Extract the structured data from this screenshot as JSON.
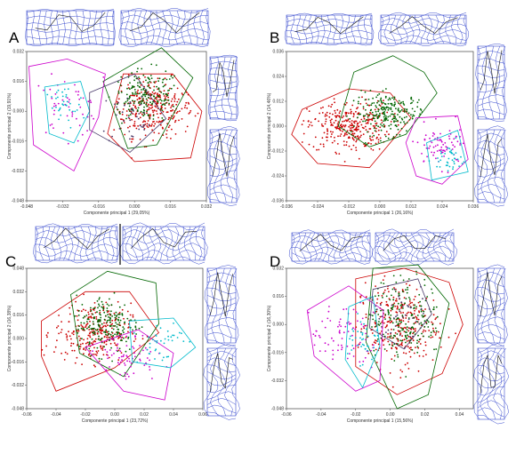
{
  "chart_data": [
    {
      "panel": "A",
      "type": "scatter",
      "xlabel": "Componente principal 1 (29,05%)",
      "ylabel": "Componente principal 2 (19,91%)",
      "xticks": [
        "-0.048",
        "-0.032",
        "-0.016",
        "0.000",
        "0.016",
        "0.032"
      ],
      "yticks": [
        "0.032",
        "0.016",
        "0.000",
        "-0.016",
        "-0.032",
        "-0.048"
      ],
      "xlim": [
        -0.048,
        0.032
      ],
      "ylim": [
        -0.048,
        0.032
      ],
      "series": [
        {
          "color": "#cc0000",
          "center": [
            0.008,
            0.002
          ],
          "spread": [
            0.009,
            0.008
          ],
          "n": 300,
          "hull": [
            [
              -0.005,
              0.02
            ],
            [
              0.017,
              0.02
            ],
            [
              0.03,
              0.0
            ],
            [
              0.025,
              -0.025
            ],
            [
              0.0,
              -0.027
            ],
            [
              -0.012,
              -0.012
            ]
          ]
        },
        {
          "color": "#006600",
          "center": [
            0.005,
            0.008
          ],
          "spread": [
            0.008,
            0.007
          ],
          "n": 180,
          "hull": [
            [
              -0.014,
              0.016
            ],
            [
              0.012,
              0.034
            ],
            [
              0.026,
              0.018
            ],
            [
              0.01,
              -0.018
            ],
            [
              -0.003,
              -0.02
            ]
          ]
        },
        {
          "color": "#cc00cc",
          "center": [
            -0.03,
            0.002
          ],
          "spread": [
            0.008,
            0.008
          ],
          "n": 50,
          "hull": [
            [
              -0.047,
              0.024
            ],
            [
              -0.03,
              0.028
            ],
            [
              -0.013,
              0.02
            ],
            [
              -0.016,
              -0.003
            ],
            [
              -0.027,
              -0.032
            ],
            [
              -0.045,
              -0.018
            ]
          ]
        },
        {
          "color": "#00bbcc",
          "center": [
            -0.032,
            0.002
          ],
          "spread": [
            0.005,
            0.006
          ],
          "n": 35,
          "hull": [
            [
              -0.04,
              0.013
            ],
            [
              -0.024,
              0.016
            ],
            [
              -0.02,
              0.0
            ],
            [
              -0.027,
              -0.017
            ],
            [
              -0.038,
              -0.012
            ]
          ]
        },
        {
          "color": "#4a3a6a",
          "center": [
            0.0,
            -0.003
          ],
          "spread": [
            0.008,
            0.008
          ],
          "n": 40,
          "hull": [
            [
              -0.02,
              0.01
            ],
            [
              0.0,
              0.02
            ],
            [
              0.014,
              -0.004
            ],
            [
              -0.002,
              -0.022
            ],
            [
              -0.02,
              -0.01
            ]
          ]
        }
      ]
    },
    {
      "panel": "B",
      "type": "scatter",
      "xlabel": "Componente principal 1 (26,16%)",
      "ylabel": "Componente principal 2 (14,46%)",
      "xticks": [
        "-0.036",
        "-0.024",
        "-0.012",
        "0.000",
        "0.012",
        "0.024",
        "0.036"
      ],
      "yticks": [
        "0.036",
        "0.024",
        "0.012",
        "0.000",
        "-0.012",
        "-0.024",
        "-0.036"
      ],
      "xlim": [
        -0.036,
        0.036
      ],
      "ylim": [
        -0.036,
        0.036
      ],
      "series": [
        {
          "color": "#cc0000",
          "center": [
            -0.012,
            0.0
          ],
          "spread": [
            0.008,
            0.006
          ],
          "n": 320,
          "hull": [
            [
              -0.03,
              0.008
            ],
            [
              -0.012,
              0.018
            ],
            [
              0.004,
              0.016
            ],
            [
              0.012,
              0.004
            ],
            [
              -0.004,
              -0.02
            ],
            [
              -0.024,
              -0.018
            ],
            [
              -0.034,
              -0.004
            ]
          ]
        },
        {
          "color": "#006600",
          "center": [
            0.004,
            0.006
          ],
          "spread": [
            0.007,
            0.005
          ],
          "n": 220,
          "hull": [
            [
              -0.01,
              0.026
            ],
            [
              0.005,
              0.034
            ],
            [
              0.017,
              0.026
            ],
            [
              0.022,
              0.016
            ],
            [
              0.01,
              -0.004
            ],
            [
              -0.004,
              -0.01
            ],
            [
              -0.016,
              0.0
            ]
          ]
        },
        {
          "color": "#cc00cc",
          "center": [
            0.024,
            -0.01
          ],
          "spread": [
            0.006,
            0.005
          ],
          "n": 80,
          "hull": [
            [
              0.014,
              0.004
            ],
            [
              0.03,
              0.005
            ],
            [
              0.034,
              -0.016
            ],
            [
              0.024,
              -0.028
            ],
            [
              0.014,
              -0.024
            ],
            [
              0.01,
              -0.008
            ]
          ]
        },
        {
          "color": "#00bbcc",
          "center": [
            0.028,
            -0.016
          ],
          "spread": [
            0.004,
            0.004
          ],
          "n": 40,
          "hull": [
            [
              0.018,
              -0.008
            ],
            [
              0.03,
              -0.002
            ],
            [
              0.034,
              -0.022
            ],
            [
              0.02,
              -0.026
            ]
          ]
        }
      ]
    },
    {
      "panel": "C",
      "type": "scatter",
      "xlabel": "Componente principal 1 (23,72%)",
      "ylabel": "Componente principal 2 (16,38%)",
      "xticks": [
        "-0.06",
        "-0.04",
        "-0.02",
        "0.00",
        "0.02",
        "0.04",
        "0.06"
      ],
      "yticks": [
        "0.048",
        "0.032",
        "0.016",
        "0.000",
        "-0.016",
        "-0.032",
        "-0.048"
      ],
      "xlim": [
        -0.06,
        0.06
      ],
      "ylim": [
        -0.048,
        0.048
      ],
      "series": [
        {
          "color": "#cc0000",
          "center": [
            -0.015,
            0.004
          ],
          "spread": [
            0.013,
            0.01
          ],
          "n": 280,
          "hull": [
            [
              -0.05,
              0.012
            ],
            [
              -0.02,
              0.032
            ],
            [
              0.01,
              0.032
            ],
            [
              0.03,
              0.004
            ],
            [
              0.0,
              -0.02
            ],
            [
              -0.04,
              -0.036
            ],
            [
              -0.05,
              -0.012
            ]
          ]
        },
        {
          "color": "#006600",
          "center": [
            -0.005,
            0.01
          ],
          "spread": [
            0.011,
            0.01
          ],
          "n": 200,
          "hull": [
            [
              -0.03,
              0.03
            ],
            [
              -0.005,
              0.046
            ],
            [
              0.028,
              0.038
            ],
            [
              0.03,
              0.01
            ],
            [
              0.006,
              -0.026
            ],
            [
              -0.024,
              -0.01
            ]
          ]
        },
        {
          "color": "#cc00cc",
          "center": [
            0.008,
            -0.012
          ],
          "spread": [
            0.01,
            0.009
          ],
          "n": 70,
          "hull": [
            [
              -0.02,
              -0.006
            ],
            [
              0.016,
              0.006
            ],
            [
              0.04,
              -0.01
            ],
            [
              0.034,
              -0.042
            ],
            [
              0.006,
              -0.036
            ]
          ]
        },
        {
          "color": "#00bbcc",
          "center": [
            0.03,
            -0.002
          ],
          "spread": [
            0.008,
            0.008
          ],
          "n": 40,
          "hull": [
            [
              0.01,
              0.012
            ],
            [
              0.04,
              0.014
            ],
            [
              0.055,
              -0.006
            ],
            [
              0.038,
              -0.02
            ],
            [
              0.012,
              -0.016
            ]
          ]
        }
      ]
    },
    {
      "panel": "D",
      "type": "scatter",
      "xlabel": "Componente principal 1 (15,56%)",
      "ylabel": "Componente principal 2 (16,30%)",
      "xticks": [
        "-0.06",
        "-0.04",
        "-0.02",
        "0.00",
        "0.02",
        "0.04"
      ],
      "yticks": [
        "0.032",
        "0.016",
        "0.000",
        "-0.016",
        "-0.032",
        "-0.048"
      ],
      "xlim": [
        -0.06,
        0.048
      ],
      "ylim": [
        -0.048,
        0.032
      ],
      "series": [
        {
          "color": "#cc0000",
          "center": [
            0.004,
            0.0
          ],
          "spread": [
            0.012,
            0.012
          ],
          "n": 300,
          "hull": [
            [
              -0.02,
              0.026
            ],
            [
              0.008,
              0.032
            ],
            [
              0.034,
              0.024
            ],
            [
              0.042,
              0.0
            ],
            [
              0.03,
              -0.028
            ],
            [
              0.004,
              -0.04
            ],
            [
              -0.02,
              -0.024
            ]
          ]
        },
        {
          "color": "#006600",
          "center": [
            0.008,
            0.004
          ],
          "spread": [
            0.011,
            0.011
          ],
          "n": 200,
          "hull": [
            [
              -0.01,
              0.032
            ],
            [
              0.016,
              0.034
            ],
            [
              0.034,
              0.012
            ],
            [
              0.022,
              -0.04
            ],
            [
              0.004,
              -0.048
            ],
            [
              -0.014,
              -0.01
            ]
          ]
        },
        {
          "color": "#cc00cc",
          "center": [
            -0.03,
            -0.006
          ],
          "spread": [
            0.012,
            0.01
          ],
          "n": 80,
          "hull": [
            [
              -0.048,
              0.008
            ],
            [
              -0.024,
              0.022
            ],
            [
              -0.004,
              0.008
            ],
            [
              -0.006,
              -0.032
            ],
            [
              -0.02,
              -0.038
            ],
            [
              -0.044,
              -0.018
            ]
          ]
        },
        {
          "color": "#00bbcc",
          "center": [
            -0.016,
            -0.008
          ],
          "spread": [
            0.006,
            0.008
          ],
          "n": 40,
          "hull": [
            [
              -0.024,
              0.01
            ],
            [
              -0.01,
              0.016
            ],
            [
              -0.006,
              -0.012
            ],
            [
              -0.016,
              -0.036
            ],
            [
              -0.026,
              -0.02
            ]
          ]
        },
        {
          "color": "#4a3a6a",
          "center": [
            0.01,
            0.004
          ],
          "spread": [
            0.01,
            0.01
          ],
          "n": 40,
          "hull": [
            [
              -0.01,
              0.02
            ],
            [
              0.016,
              0.026
            ],
            [
              0.024,
              0.006
            ],
            [
              0.008,
              -0.014
            ],
            [
              -0.012,
              -0.002
            ]
          ]
        }
      ]
    }
  ]
}
